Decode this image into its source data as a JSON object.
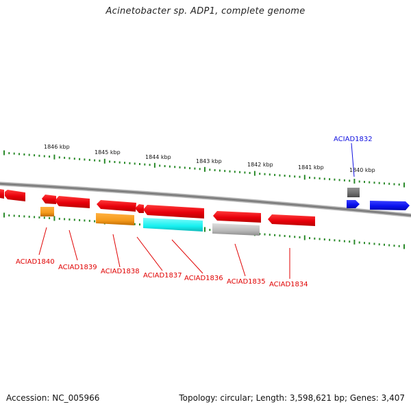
{
  "title": "Acinetobacter sp. ADP1, complete genome",
  "footer": {
    "accession": "Accession: NC_005966",
    "summary": "Topology: circular; Length: 3,598,621 bp; Genes: 3,407"
  },
  "colors": {
    "gene_red": "#e8000b",
    "gene_blue": "#0a12f0",
    "gene_orange": "#f59a1c",
    "gene_cyan": "#17f0f0",
    "gene_grey": "#b8b8b8",
    "gene_darkgrey": "#6d6d6d",
    "ticks": "#2a8a2a",
    "backbone": "#8a8a8a",
    "label_red": "#e00000",
    "label_blue": "#1010e0"
  },
  "scale": {
    "ticks": [
      {
        "label": "1846 kbp"
      },
      {
        "label": "1845 kbp"
      },
      {
        "label": "1844 kbp"
      },
      {
        "label": "1843 kbp"
      },
      {
        "label": "1842 kbp"
      },
      {
        "label": "1841 kbp"
      },
      {
        "label": "1840 kbp"
      }
    ]
  },
  "genes": [
    {
      "label": "ACIAD1840",
      "color": "red"
    },
    {
      "label": "ACIAD1839",
      "color": "red"
    },
    {
      "label": "ACIAD1838",
      "color": "red"
    },
    {
      "label": "ACIAD1837",
      "color": "red"
    },
    {
      "label": "ACIAD1836",
      "color": "red"
    },
    {
      "label": "ACIAD1835",
      "color": "red"
    },
    {
      "label": "ACIAD1834",
      "color": "red"
    },
    {
      "label": "ACIAD1832",
      "color": "blue"
    }
  ]
}
